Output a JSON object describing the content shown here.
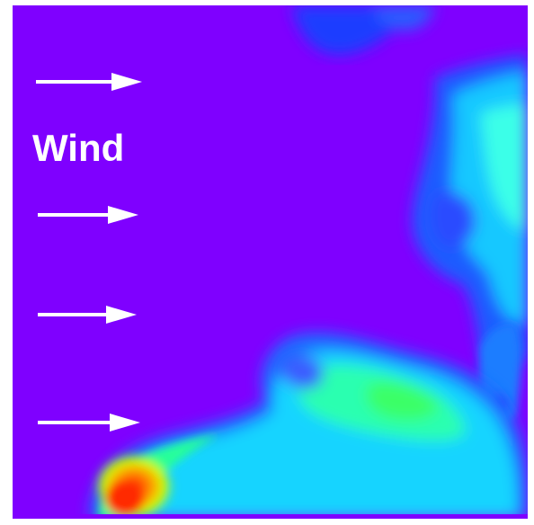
{
  "label": {
    "text": "Wind"
  },
  "arrows": [
    {
      "name": "wind-arrow-1"
    },
    {
      "name": "wind-arrow-2"
    },
    {
      "name": "wind-arrow-3"
    },
    {
      "name": "wind-arrow-4"
    }
  ],
  "colors": {
    "background": "#7f00ff",
    "arrow": "#ffffff",
    "label": "#ffffff",
    "plume_low": "#0000ff",
    "plume_mid": "#00ffff",
    "plume_high": "#00ff66",
    "plume_peak": "#ff0000"
  }
}
